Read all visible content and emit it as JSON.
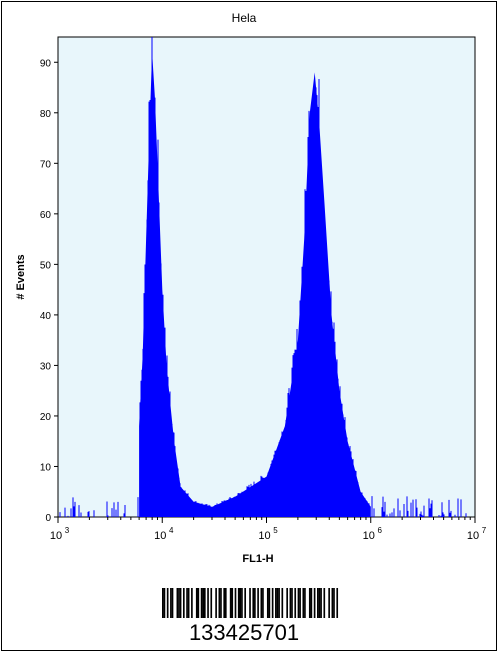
{
  "chart_data": {
    "type": "histogram",
    "title": "Hela",
    "xlabel": "FL1-H",
    "ylabel": "# Events",
    "x_scale": "log",
    "xlim": [
      1000,
      10000000
    ],
    "ylim": [
      0,
      95
    ],
    "x_ticks": [
      {
        "value": 1000,
        "base": "10",
        "exp": "3"
      },
      {
        "value": 10000,
        "base": "10",
        "exp": "4"
      },
      {
        "value": 100000,
        "base": "10",
        "exp": "5"
      },
      {
        "value": 1000000,
        "base": "10",
        "exp": "6"
      },
      {
        "value": 10000000,
        "base": "10",
        "exp": "7"
      }
    ],
    "y_ticks": [
      0,
      10,
      20,
      30,
      40,
      50,
      60,
      70,
      80,
      90
    ],
    "grid": false,
    "plot_background": "#e8f6fb",
    "fill_color": "#0000ff",
    "bins": [
      {
        "x": 6000,
        "y": 18
      },
      {
        "x": 6500,
        "y": 32
      },
      {
        "x": 7000,
        "y": 55
      },
      {
        "x": 7500,
        "y": 75
      },
      {
        "x": 8000,
        "y": 92
      },
      {
        "x": 8500,
        "y": 83
      },
      {
        "x": 9000,
        "y": 70
      },
      {
        "x": 10000,
        "y": 45
      },
      {
        "x": 11000,
        "y": 30
      },
      {
        "x": 12000,
        "y": 22
      },
      {
        "x": 13000,
        "y": 15
      },
      {
        "x": 15000,
        "y": 6
      },
      {
        "x": 20000,
        "y": 3
      },
      {
        "x": 30000,
        "y": 2
      },
      {
        "x": 50000,
        "y": 4
      },
      {
        "x": 100000,
        "y": 8
      },
      {
        "x": 150000,
        "y": 18
      },
      {
        "x": 200000,
        "y": 35
      },
      {
        "x": 230000,
        "y": 55
      },
      {
        "x": 260000,
        "y": 80
      },
      {
        "x": 290000,
        "y": 88
      },
      {
        "x": 320000,
        "y": 78
      },
      {
        "x": 360000,
        "y": 62
      },
      {
        "x": 420000,
        "y": 40
      },
      {
        "x": 500000,
        "y": 25
      },
      {
        "x": 600000,
        "y": 15
      },
      {
        "x": 800000,
        "y": 5
      },
      {
        "x": 1000000,
        "y": 2
      }
    ]
  },
  "barcode": {
    "number": "133425701",
    "pattern": "1101011001110101101001101110101001011011001101011101001011010110011010111010010110101101100110101110100101101"
  }
}
